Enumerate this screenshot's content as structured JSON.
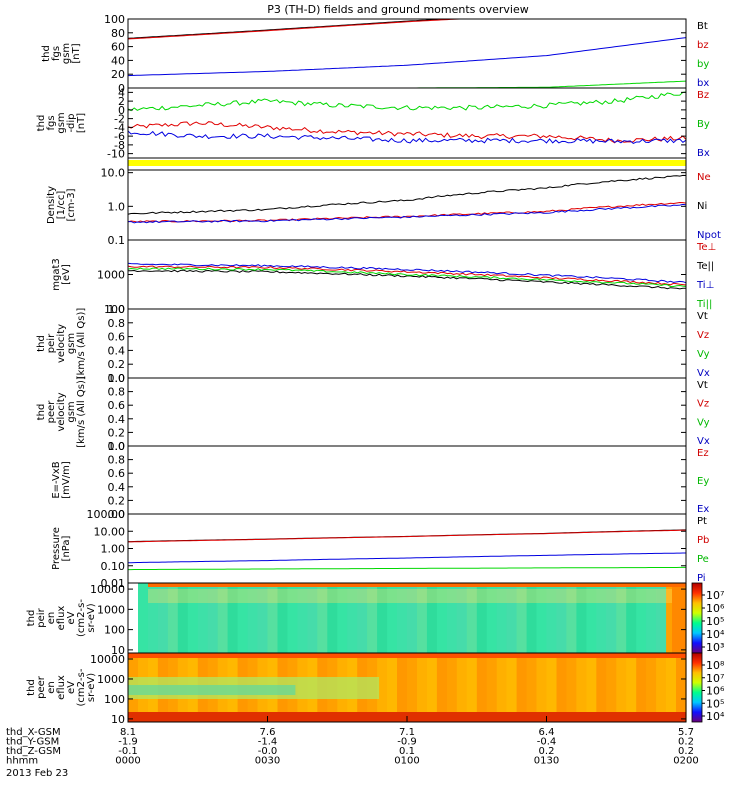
{
  "title": "P3 (TH-D) fields and ground moments overview",
  "date": "2013 Feb 23",
  "colors": {
    "black": "#000000",
    "red": "#e00000",
    "green": "#00d800",
    "blue": "#0000e0",
    "yellow": "#ffff00",
    "legendRed": "#d00000",
    "legendGreen": "#00b800",
    "legendBlue": "#0000c0"
  },
  "colorbar_colors": [
    "#6a007a",
    "#1010ff",
    "#00c8ff",
    "#00ff8c",
    "#d0ff00",
    "#ffc000",
    "#ff3000",
    "#b00000"
  ],
  "spectrogram_fill": {
    "top_panel": "#33e0a0",
    "bottom_panel": "#ffa800",
    "edge": "#b00000"
  },
  "bottom_axis": {
    "row_labels": [
      "thd_X-GSM",
      "thd_Y-GSM",
      "thd_Z-GSM",
      "hhmm"
    ],
    "columns": [
      {
        "x": "8.1",
        "y": "-1.9",
        "z": "-0.1",
        "t": "0000"
      },
      {
        "x": "7.6",
        "y": "-1.4",
        "z": "-0.0",
        "t": "0030"
      },
      {
        "x": "7.1",
        "y": "-0.9",
        "z": "0.1",
        "t": "0100"
      },
      {
        "x": "6.4",
        "y": "-0.4",
        "z": "0.2",
        "t": "0130"
      },
      {
        "x": "5.7",
        "y": "0.2",
        "z": "0.2",
        "t": "0200"
      }
    ]
  },
  "chart_data": [
    {
      "id": "p1",
      "type": "line",
      "ylabel": [
        "thd",
        "fgs",
        "gsm",
        "[nT]"
      ],
      "ylim": [
        0,
        100
      ],
      "yticks": [
        "100",
        "80",
        "60",
        "40",
        "20",
        "0"
      ],
      "x": [
        0,
        30,
        60,
        90,
        120
      ],
      "series": [
        {
          "name": "Bt",
          "color": "black",
          "values": [
            72,
            84,
            97,
            108,
            118
          ]
        },
        {
          "name": "bz",
          "color": "red",
          "values": [
            71,
            83,
            96,
            107,
            117
          ]
        },
        {
          "name": "by",
          "color": "green",
          "values": [
            0,
            0,
            0,
            0,
            0
          ]
        },
        {
          "name": "bx",
          "color": "blue",
          "values": [
            18,
            24,
            33,
            47,
            73
          ]
        }
      ],
      "extra_series": {
        "name": "bx",
        "color": "green",
        "values": [
          0,
          0,
          0,
          1,
          10
        ]
      },
      "legend": [
        {
          "name": "Bt",
          "color": "black"
        },
        {
          "name": "bz",
          "color": "red"
        },
        {
          "name": "by",
          "color": "green"
        },
        {
          "name": "bx",
          "color": "blue"
        }
      ]
    },
    {
      "id": "p2",
      "type": "line",
      "ylabel": [
        "thd",
        "fgs",
        "gsm",
        "-dip",
        "[nT]"
      ],
      "ylim": [
        -11,
        5
      ],
      "yticks": [
        "4",
        "2",
        "0",
        "-2",
        "-4",
        "-6",
        "-8",
        "-10"
      ],
      "x": [
        0,
        15,
        30,
        45,
        60,
        75,
        90,
        105,
        120
      ],
      "series": [
        {
          "name": "Bz",
          "color": "red",
          "values": [
            -4,
            -3,
            -4,
            -5,
            -5.5,
            -6,
            -6,
            -7,
            -6.5
          ]
        },
        {
          "name": "By",
          "color": "green",
          "values": [
            0,
            1,
            2,
            1,
            0.5,
            0.5,
            1,
            2,
            4
          ]
        },
        {
          "name": "Bx",
          "color": "blue",
          "values": [
            -5,
            -6,
            -6,
            -6.5,
            -7,
            -7,
            -7,
            -7.2,
            -7
          ]
        }
      ],
      "legend": [
        {
          "name": "Bz",
          "color": "red"
        },
        {
          "name": "By",
          "color": "green"
        },
        {
          "name": "Bx",
          "color": "blue"
        }
      ]
    },
    {
      "id": "p3",
      "type": "line",
      "log": true,
      "ylabel": [
        "Density",
        "[1/cc]",
        "[cm-3]"
      ],
      "ylim": [
        0.1,
        12
      ],
      "yticks": [
        "10.0",
        "1.0",
        "0.1"
      ],
      "x": [
        0,
        30,
        60,
        90,
        120
      ],
      "series": [
        {
          "name": "Ne",
          "color": "red",
          "values": [
            0.35,
            0.38,
            0.5,
            0.7,
            1.3
          ]
        },
        {
          "name": "Ni",
          "color": "black",
          "values": [
            0.6,
            0.8,
            1.5,
            3.5,
            8.0
          ]
        },
        {
          "name": "Npot",
          "color": "blue",
          "values": [
            0.34,
            0.37,
            0.48,
            0.65,
            1.1
          ]
        }
      ],
      "legend": [
        {
          "name": "Ne",
          "color": "red"
        },
        {
          "name": "Ni",
          "color": "black"
        },
        {
          "name": "Npot",
          "color": "blue"
        }
      ]
    },
    {
      "id": "p4",
      "type": "line",
      "log": true,
      "ylabel": [
        "mgat3",
        "[eV]"
      ],
      "ylim": [
        100,
        10000
      ],
      "yticks": [
        "1000",
        "100"
      ],
      "x": [
        0,
        30,
        60,
        90,
        120
      ],
      "series": [
        {
          "name": "Te⊥",
          "color": "red",
          "values": [
            1700,
            1600,
            1200,
            800,
            500
          ]
        },
        {
          "name": "Te||",
          "color": "black",
          "values": [
            1300,
            1200,
            900,
            600,
            380
          ]
        },
        {
          "name": "Ti⊥",
          "color": "blue",
          "values": [
            2000,
            1800,
            1400,
            950,
            580
          ]
        },
        {
          "name": "Ti||",
          "color": "green",
          "values": [
            1500,
            1400,
            1000,
            700,
            450
          ]
        }
      ],
      "legend": [
        {
          "name": "Te⊥",
          "color": "red"
        },
        {
          "name": "Te||",
          "color": "black"
        },
        {
          "name": "Ti⊥",
          "color": "blue"
        },
        {
          "name": "Ti||",
          "color": "green"
        }
      ]
    },
    {
      "id": "p5",
      "type": "line",
      "ylabel": [
        "thd",
        "peir",
        "velocity",
        "gsm",
        "[km/s (All Qs)]"
      ],
      "ylim": [
        0,
        1
      ],
      "yticks": [
        "1.0",
        "0.8",
        "0.6",
        "0.4",
        "0.2",
        "0.0"
      ],
      "series": [],
      "legend": [
        {
          "name": "Vt",
          "color": "black"
        },
        {
          "name": "Vz",
          "color": "red"
        },
        {
          "name": "Vy",
          "color": "green"
        },
        {
          "name": "Vx",
          "color": "blue"
        }
      ]
    },
    {
      "id": "p6",
      "type": "line",
      "ylabel": [
        "thd",
        "peer",
        "velocity",
        "gsm",
        "[km/s (All Qs)]"
      ],
      "ylim": [
        0,
        1
      ],
      "yticks": [
        "1.0",
        "0.8",
        "0.6",
        "0.4",
        "0.2",
        "0.0"
      ],
      "series": [],
      "legend": [
        {
          "name": "Vt",
          "color": "black"
        },
        {
          "name": "Vz",
          "color": "red"
        },
        {
          "name": "Vy",
          "color": "green"
        },
        {
          "name": "Vx",
          "color": "blue"
        }
      ]
    },
    {
      "id": "p7",
      "type": "line",
      "ylabel": [
        "E=-VxB",
        "[mV/m]"
      ],
      "ylim": [
        0,
        1
      ],
      "yticks": [
        "1.0",
        "0.8",
        "0.6",
        "0.4",
        "0.2",
        "0.0"
      ],
      "series": [],
      "legend": [
        {
          "name": "Ez",
          "color": "red"
        },
        {
          "name": "Ey",
          "color": "green"
        },
        {
          "name": "Ex",
          "color": "blue"
        }
      ]
    },
    {
      "id": "p8",
      "type": "line",
      "log": true,
      "ylabel": [
        "Pressure",
        "[nPa]"
      ],
      "ylim": [
        0.01,
        100
      ],
      "yticks": [
        "100.00",
        "10.00",
        "1.00",
        "0.10",
        "0.01"
      ],
      "x": [
        0,
        30,
        60,
        90,
        120
      ],
      "series": [
        {
          "name": "Pt",
          "color": "black",
          "values": [
            2.5,
            3.5,
            5,
            7.5,
            12
          ]
        },
        {
          "name": "Pb",
          "color": "red",
          "values": [
            2.4,
            3.4,
            4.9,
            7.3,
            11.5
          ]
        },
        {
          "name": "Pe",
          "color": "green",
          "values": [
            0.06,
            0.065,
            0.07,
            0.075,
            0.08
          ]
        },
        {
          "name": "Pi",
          "color": "blue",
          "values": [
            0.15,
            0.2,
            0.28,
            0.4,
            0.55
          ]
        }
      ],
      "legend": [
        {
          "name": "Pt",
          "color": "black"
        },
        {
          "name": "Pb",
          "color": "red"
        },
        {
          "name": "Pe",
          "color": "green"
        },
        {
          "name": "Pi",
          "color": "blue"
        }
      ]
    },
    {
      "id": "p9",
      "type": "heatmap",
      "log": true,
      "ylabel": [
        "thd",
        "peir",
        "en",
        "eflux",
        "eV",
        "(cm2-s-",
        "sr-eV)"
      ],
      "ylim": [
        7,
        20000
      ],
      "yticks": [
        "10000",
        "1000",
        "100",
        "10"
      ],
      "colorbar_ticks": [
        "10⁷",
        "10⁶",
        "10⁵",
        "10⁴",
        "10³"
      ]
    },
    {
      "id": "p10",
      "type": "heatmap",
      "log": true,
      "ylabel": [
        "thd",
        "peer",
        "en",
        "eflux",
        "eV",
        "(cm2-s-",
        "sr-eV)"
      ],
      "ylim": [
        7,
        20000
      ],
      "yticks": [
        "10000",
        "1000",
        "100",
        "10"
      ],
      "colorbar_ticks": [
        "10⁸",
        "10⁷",
        "10⁶",
        "10⁵",
        "10⁴"
      ]
    }
  ]
}
